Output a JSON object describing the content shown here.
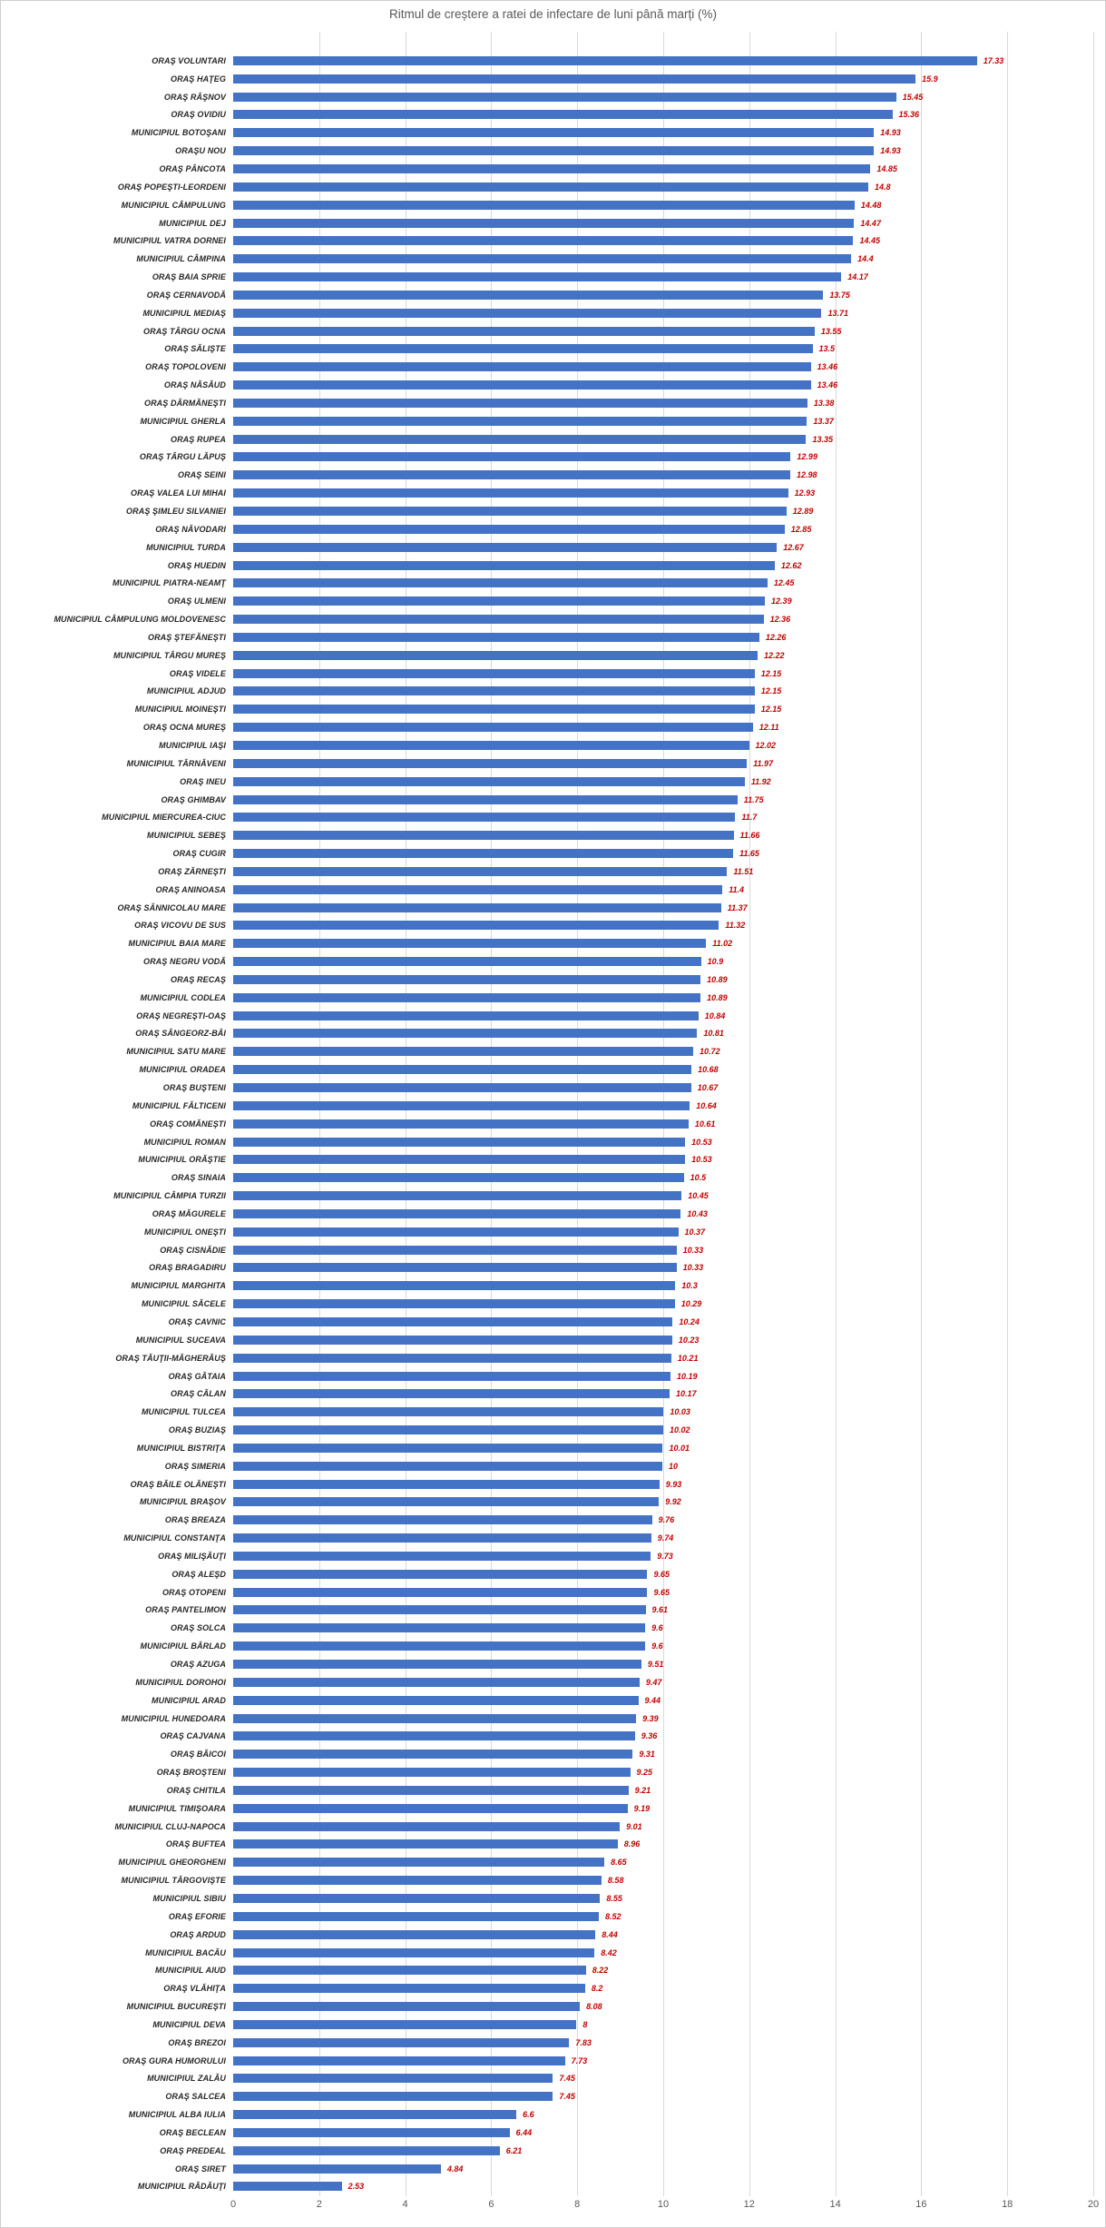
{
  "title": "Ritmul de creștere a ratei de infectare de luni până marți (%)",
  "colors": {
    "bar": "#4472C4",
    "value_label": "#C00000",
    "category_label": "#262626",
    "axis_text": "#595959",
    "title_text": "#595959",
    "gridline": "#D9D9D9",
    "border": "#CFCFCF"
  },
  "chart_data": {
    "type": "bar",
    "orientation": "horizontal",
    "title": "Ritmul de creștere a ratei de infectare de luni până marți (%)",
    "xlabel": "",
    "ylabel": "",
    "xlim": [
      0,
      20
    ],
    "x_ticks": [
      0,
      2,
      4,
      6,
      8,
      10,
      12,
      14,
      16,
      18,
      20
    ],
    "grid": true,
    "legend": null,
    "value_labels_shown": true,
    "categories": [
      "ORAŞ VOLUNTARI",
      "ORAŞ HAŢEG",
      "ORAŞ RÂŞNOV",
      "ORAŞ OVIDIU",
      "MUNICIPIUL BOTOŞANI",
      "ORAŞU NOU",
      "ORAŞ PÂNCOTA",
      "ORAŞ POPEŞTI-LEORDENI",
      "MUNICIPIUL CÂMPULUNG",
      "MUNICIPIUL DEJ",
      "MUNICIPIUL VATRA DORNEI",
      "MUNICIPIUL CÂMPINA",
      "ORAŞ BAIA SPRIE",
      "ORAŞ CERNAVODĂ",
      "MUNICIPIUL MEDIAŞ",
      "ORAŞ TÂRGU OCNA",
      "ORAŞ SĂLIŞTE",
      "ORAŞ TOPOLOVENI",
      "ORAŞ NĂSĂUD",
      "ORAŞ DĂRMĂNEŞTI",
      "MUNICIPIUL GHERLA",
      "ORAŞ RUPEA",
      "ORAŞ TÂRGU LĂPUŞ",
      "ORAŞ SEINI",
      "ORAŞ VALEA LUI MIHAI",
      "ORAŞ ŞIMLEU SILVANIEI",
      "ORAŞ NĂVODARI",
      "MUNICIPIUL TURDA",
      "ORAŞ HUEDIN",
      "MUNICIPIUL PIATRA-NEAMŢ",
      "ORAŞ ULMENI",
      "MUNICIPIUL CÂMPULUNG MOLDOVENESC",
      "ORAŞ ŞTEFĂNEŞTI",
      "MUNICIPIUL TÂRGU MUREŞ",
      "ORAŞ VIDELE",
      "MUNICIPIUL ADJUD",
      "MUNICIPIUL MOINEŞTI",
      "ORAŞ OCNA MUREŞ",
      "MUNICIPIUL IAŞI",
      "MUNICIPIUL TÂRNĂVENI",
      "ORAŞ INEU",
      "ORAŞ GHIMBAV",
      "MUNICIPIUL MIERCUREA-CIUC",
      "MUNICIPIUL SEBEŞ",
      "ORAŞ CUGIR",
      "ORAŞ ZĂRNEŞTI",
      "ORAŞ ANINOASA",
      "ORAŞ SÂNNICOLAU MARE",
      "ORAŞ VICOVU DE SUS",
      "MUNICIPIUL BAIA MARE",
      "ORAŞ NEGRU VODĂ",
      "ORAŞ RECAŞ",
      "MUNICIPIUL CODLEA",
      "ORAŞ NEGREŞTI-OAŞ",
      "ORAŞ SÂNGEORZ-BĂI",
      "MUNICIPIUL SATU MARE",
      "MUNICIPIUL ORADEA",
      "ORAŞ BUŞTENI",
      "MUNICIPIUL FĂLTICENI",
      "ORAŞ COMĂNEŞTI",
      "MUNICIPIUL ROMAN",
      "MUNICIPIUL ORĂŞTIE",
      "ORAŞ SINAIA",
      "MUNICIPIUL CÂMPIA TURZII",
      "ORAŞ MĂGURELE",
      "MUNICIPIUL ONEŞTI",
      "ORAŞ CISNĂDIE",
      "ORAŞ BRAGADIRU",
      "MUNICIPIUL MARGHITA",
      "MUNICIPIUL SĂCELE",
      "ORAŞ CAVNIC",
      "MUNICIPIUL SUCEAVA",
      "ORAŞ TĂUŢII-MĂGHERĂUŞ",
      "ORAŞ GĂTAIA",
      "ORAŞ CĂLAN",
      "MUNICIPIUL TULCEA",
      "ORAŞ BUZIAŞ",
      "MUNICIPIUL BISTRIŢA",
      "ORAŞ SIMERIA",
      "ORAŞ BĂILE OLĂNEŞTI",
      "MUNICIPIUL BRAŞOV",
      "ORAŞ BREAZA",
      "MUNICIPIUL CONSTANŢA",
      "ORAŞ MILIŞĂUŢI",
      "ORAŞ ALEŞD",
      "ORAŞ OTOPENI",
      "ORAŞ PANTELIMON",
      "ORAŞ SOLCA",
      "MUNICIPIUL BÂRLAD",
      "ORAŞ AZUGA",
      "MUNICIPIUL DOROHOI",
      "MUNICIPIUL ARAD",
      "MUNICIPIUL HUNEDOARA",
      "ORAŞ CAJVANA",
      "ORAŞ BĂICOI",
      "ORAŞ BROŞTENI",
      "ORAŞ CHITILA",
      "MUNICIPIUL TIMIŞOARA",
      "MUNICIPIUL CLUJ-NAPOCA",
      "ORAŞ BUFTEA",
      "MUNICIPIUL GHEORGHENI",
      "MUNICIPIUL TÂRGOVIŞTE",
      "MUNICIPIUL SIBIU",
      "ORAŞ EFORIE",
      "ORAŞ ARDUD",
      "MUNICIPIUL BACĂU",
      "MUNICIPIUL AIUD",
      "ORAŞ VLĂHIŢA",
      "MUNICIPIUL BUCUREŞTI",
      "MUNICIPIUL DEVA",
      "ORAŞ BREZOI",
      "ORAŞ GURA HUMORULUI",
      "MUNICIPIUL ZALĂU",
      "ORAŞ SALCEA",
      "MUNICIPIUL ALBA IULIA",
      "ORAŞ BECLEAN",
      "ORAŞ PREDEAL",
      "ORAŞ SIRET",
      "MUNICIPIUL RĂDĂUŢI"
    ],
    "values": [
      17.33,
      15.9,
      15.45,
      15.36,
      14.93,
      14.93,
      14.85,
      14.8,
      14.48,
      14.47,
      14.45,
      14.4,
      14.17,
      13.75,
      13.71,
      13.55,
      13.5,
      13.46,
      13.46,
      13.38,
      13.37,
      13.35,
      12.99,
      12.98,
      12.93,
      12.89,
      12.85,
      12.67,
      12.62,
      12.45,
      12.39,
      12.36,
      12.26,
      12.22,
      12.15,
      12.15,
      12.15,
      12.11,
      12.02,
      11.97,
      11.92,
      11.75,
      11.7,
      11.66,
      11.65,
      11.51,
      11.4,
      11.37,
      11.32,
      11.02,
      10.9,
      10.89,
      10.89,
      10.84,
      10.81,
      10.72,
      10.68,
      10.67,
      10.64,
      10.61,
      10.53,
      10.53,
      10.5,
      10.45,
      10.43,
      10.37,
      10.33,
      10.33,
      10.3,
      10.29,
      10.24,
      10.23,
      10.21,
      10.19,
      10.17,
      10.03,
      10.02,
      10.01,
      10,
      9.93,
      9.92,
      9.76,
      9.74,
      9.73,
      9.65,
      9.65,
      9.61,
      9.6,
      9.6,
      9.51,
      9.47,
      9.44,
      9.39,
      9.36,
      9.31,
      9.25,
      9.21,
      9.19,
      9.01,
      8.96,
      8.65,
      8.58,
      8.55,
      8.52,
      8.44,
      8.42,
      8.22,
      8.2,
      8.08,
      8,
      7.83,
      7.73,
      7.45,
      7.45,
      6.6,
      6.44,
      6.21,
      4.84,
      2.53
    ]
  }
}
